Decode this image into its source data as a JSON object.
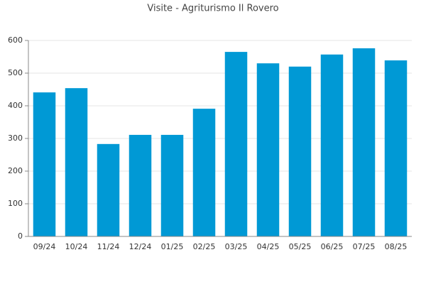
{
  "chart_data": {
    "type": "bar",
    "title": "Visite - Agriturismo Il Rovero",
    "categories": [
      "09/24",
      "10/24",
      "11/24",
      "12/24",
      "01/25",
      "02/25",
      "03/25",
      "04/25",
      "05/25",
      "06/25",
      "07/25",
      "08/25"
    ],
    "values": [
      441,
      454,
      283,
      311,
      311,
      391,
      565,
      530,
      520,
      557,
      576,
      539
    ],
    "color": "#0099d5",
    "ylim": [
      0,
      600
    ],
    "yticks": [
      0,
      100,
      200,
      300,
      400,
      500,
      600
    ],
    "grid": true
  }
}
